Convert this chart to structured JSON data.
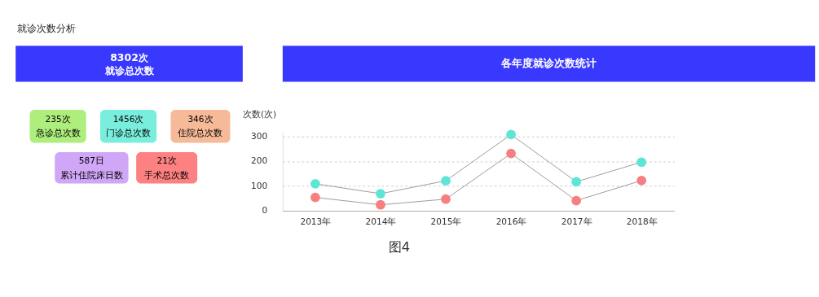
{
  "chart_data": [
    {
      "type": "other",
      "annotations": [
        "就诊次数分析",
        "8302次",
        "就诊总次数",
        "235次",
        "急诊总次数",
        "1456次",
        "门诊总次数",
        "346次",
        "住院总次数",
        "587日",
        "累计住院床日数",
        "21次",
        "手术总次数",
        "图4"
      ]
    },
    {
      "type": "line",
      "title": "各年度就诊次数统计",
      "ylabel": "次数(次)",
      "categories": [
        "2013年",
        "2014年",
        "2015年",
        "2016年",
        "2017年",
        "2018年"
      ],
      "series": [
        {
          "color": "#5ce6d6",
          "values": [
            109,
            69,
            121,
            307,
            117,
            196
          ]
        },
        {
          "color": "#f77f80",
          "values": [
            54,
            24,
            47,
            231,
            41,
            122
          ]
        }
      ],
      "ylim": [
        0,
        315
      ],
      "yticks": [
        0,
        100,
        200,
        300
      ],
      "grid": "y",
      "marker": "circle",
      "line_style": "solid"
    }
  ]
}
